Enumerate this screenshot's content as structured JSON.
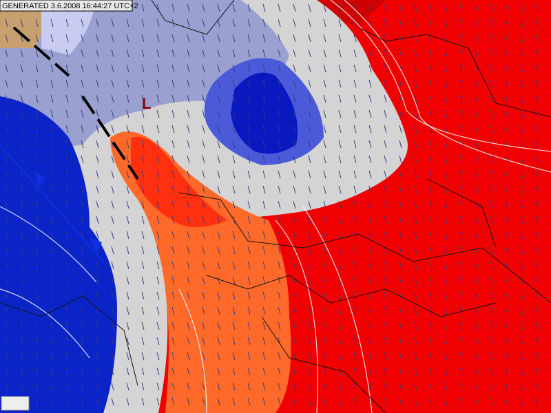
{
  "header": {
    "generated": "GENERATED 3.6.2008 16:44:27 UTC+2"
  },
  "labels": {
    "low": "L"
  }
}
